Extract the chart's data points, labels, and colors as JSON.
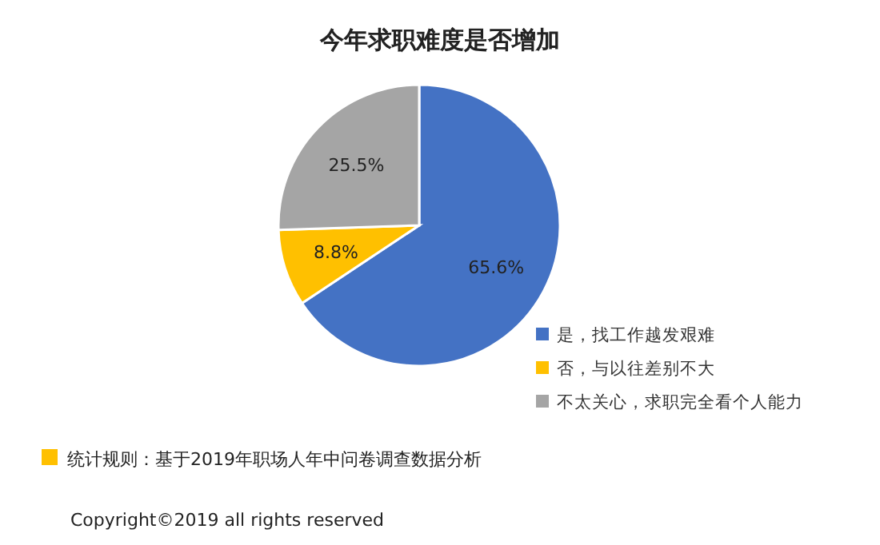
{
  "chart_data": {
    "type": "pie",
    "title": "今年求职难度是否增加",
    "categories": [
      "是，找工作越发艰难",
      "否，与以往差别不大",
      "不太关心，求职完全看个人能力"
    ],
    "values": [
      65.6,
      8.8,
      25.5
    ],
    "colors": [
      "#4472c4",
      "#ffc000",
      "#a5a5a5"
    ],
    "value_labels": [
      "65.6%",
      "8.8%",
      "25.5%"
    ],
    "legend": "right",
    "annotations": [
      "统计规则：基于2019年职场人年中问卷调查数据分析",
      "Copyright©2019 all rights reserved"
    ]
  }
}
